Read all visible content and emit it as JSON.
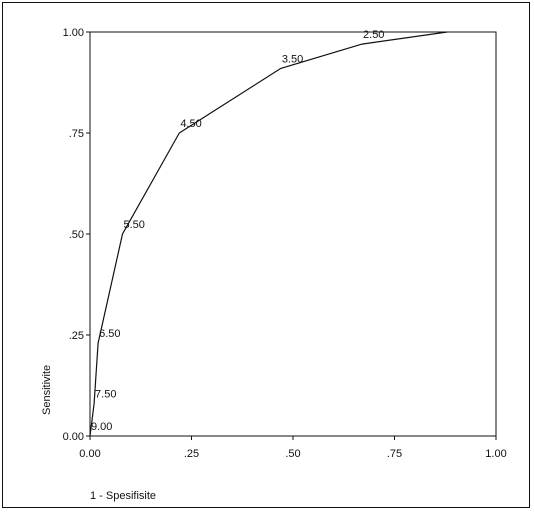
{
  "chart_data": {
    "type": "line",
    "title": "",
    "xlabel": "1 - Spesifisite",
    "ylabel": "Sensitivite",
    "xlim": [
      0,
      1
    ],
    "ylim": [
      0,
      1
    ],
    "x_ticks": [
      0,
      0.25,
      0.5,
      0.75,
      1
    ],
    "x_tick_labels": [
      "0.00",
      ".25",
      ".50",
      ".75",
      "1.00"
    ],
    "y_ticks": [
      0,
      0.25,
      0.5,
      0.75,
      1
    ],
    "y_tick_labels": [
      "0.00",
      ".25",
      ".50",
      ".75",
      "1.00"
    ],
    "grid": false,
    "series": [
      {
        "x": [
          0,
          0.01,
          0.02,
          0.08,
          0.22,
          0.47,
          0.67,
          0.88
        ],
        "y": [
          0,
          0.08,
          0.23,
          0.5,
          0.75,
          0.91,
          0.97,
          1.0
        ]
      }
    ],
    "annotations": [
      {
        "text": "9.00",
        "x": 0.0,
        "y": 0.0
      },
      {
        "text": "7.50",
        "x": 0.01,
        "y": 0.08
      },
      {
        "text": "6.50",
        "x": 0.02,
        "y": 0.23
      },
      {
        "text": "5.50",
        "x": 0.08,
        "y": 0.5
      },
      {
        "text": "4.50",
        "x": 0.22,
        "y": 0.75
      },
      {
        "text": "3.50",
        "x": 0.47,
        "y": 0.91
      },
      {
        "text": "2.50",
        "x": 0.67,
        "y": 0.97
      }
    ],
    "line_color": "#111111"
  }
}
